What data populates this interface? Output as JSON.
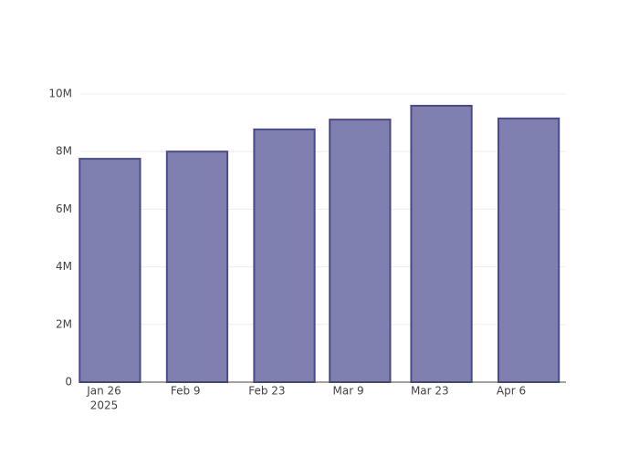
{
  "chart_data": {
    "type": "bar",
    "x": [
      "2025-01-27",
      "2025-02-11",
      "2025-02-26",
      "2025-03-11",
      "2025-03-25",
      "2025-04-09"
    ],
    "values": [
      7750000,
      8000000,
      8770000,
      9110000,
      9590000,
      9150000
    ],
    "color": "#7f7fb0",
    "edge_color": "#4b4b8a",
    "xlim": [
      "2025-01-21T22:00",
      "2025-04-15T10:00"
    ],
    "xticks": [
      {
        "value": "2025-01-26",
        "label": "Jan 26",
        "year": "2025"
      },
      {
        "value": "2025-02-09",
        "label": "Feb 9"
      },
      {
        "value": "2025-02-23",
        "label": "Feb 23"
      },
      {
        "value": "2025-03-09",
        "label": "Mar 9"
      },
      {
        "value": "2025-03-23",
        "label": "Mar 23"
      },
      {
        "value": "2025-04-06",
        "label": "Apr 6"
      }
    ],
    "ylim": [
      0,
      10000000
    ],
    "yticks": [
      0,
      {
        "value": 2000000,
        "label": "2M"
      },
      {
        "value": 4000000,
        "label": "4M"
      },
      {
        "value": 6000000,
        "label": "6M"
      },
      {
        "value": 8000000,
        "label": "8M"
      },
      {
        "value": 10000000,
        "label": "10M"
      }
    ],
    "grid": true
  }
}
